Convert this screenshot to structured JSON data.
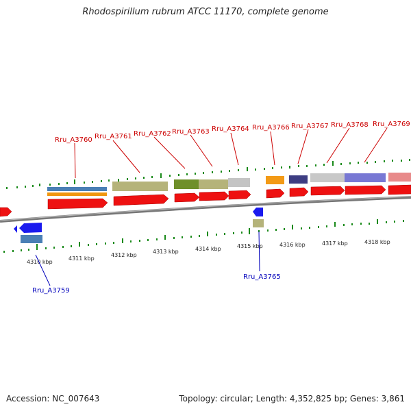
{
  "title": "Rhodospirillum rubrum ATCC 11170, complete genome",
  "footer": {
    "accession": "Accession: NC_007643",
    "summary": "Topology: circular; Length: 4,352,825 bp; Genes: 3,861"
  },
  "colors": {
    "tick": "#1a8a1a",
    "forward_label": "#cc0000",
    "reverse_label": "#0000bb",
    "forward_arrow": "#ee1111",
    "reverse_arrow": "#1a1aee",
    "backbone": "#777777"
  },
  "kbp_labels": [
    "4310 kbp",
    "4311 kbp",
    "4312 kbp",
    "4313 kbp",
    "4314 kbp",
    "4315 kbp",
    "4316 kbp",
    "4317 kbp",
    "4318 kbp"
  ],
  "forward_genes": [
    "Rru_A3760",
    "Rru_A3761",
    "Rru_A3762",
    "Rru_A3763",
    "Rru_A3764",
    "Rru_A3766",
    "Rru_A3767",
    "Rru_A3768",
    "Rru_A3769"
  ],
  "reverse_genes": [
    "Rru_A3759",
    "Rru_A3765"
  ]
}
